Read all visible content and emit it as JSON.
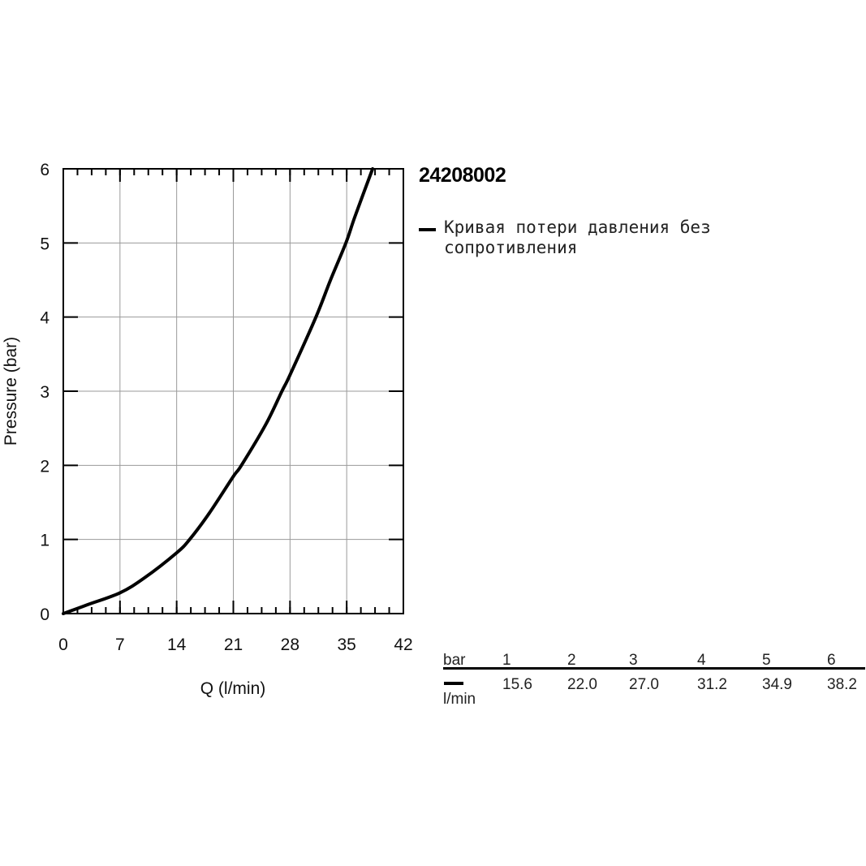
{
  "model": "24208002",
  "legend": {
    "label": "Кривая потери давления без сопротивления"
  },
  "chart_data": {
    "type": "line",
    "xlabel": "Q (l/min)",
    "ylabel": "Pressure (bar)",
    "xlim": [
      0,
      42
    ],
    "ylim": [
      0,
      6
    ],
    "x_ticks": [
      0,
      7,
      14,
      21,
      28,
      35,
      42
    ],
    "y_ticks": [
      0,
      1,
      2,
      3,
      4,
      5,
      6
    ],
    "x_minor_step": 1.75,
    "y_minor_step": 0.5,
    "grid": true,
    "series": [
      {
        "name": "Кривая потери давления без сопротивления",
        "color": "#000000",
        "x": [
          0,
          3,
          7,
          10,
          14,
          15.6,
          18,
          21,
          22.0,
          25,
          27.0,
          28,
          31.2,
          33,
          34.9,
          36,
          38.2
        ],
        "y": [
          0,
          0.12,
          0.28,
          0.48,
          0.82,
          1,
          1.35,
          1.85,
          2,
          2.55,
          3,
          3.22,
          4,
          4.5,
          5,
          5.35,
          6
        ]
      }
    ]
  },
  "table": {
    "header_label": "bar",
    "unit_label": "l/min",
    "pressures": [
      "1",
      "2",
      "3",
      "4",
      "5",
      "6"
    ],
    "flows": [
      "15.6",
      "22.0",
      "27.0",
      "31.2",
      "34.9",
      "38.2"
    ]
  }
}
